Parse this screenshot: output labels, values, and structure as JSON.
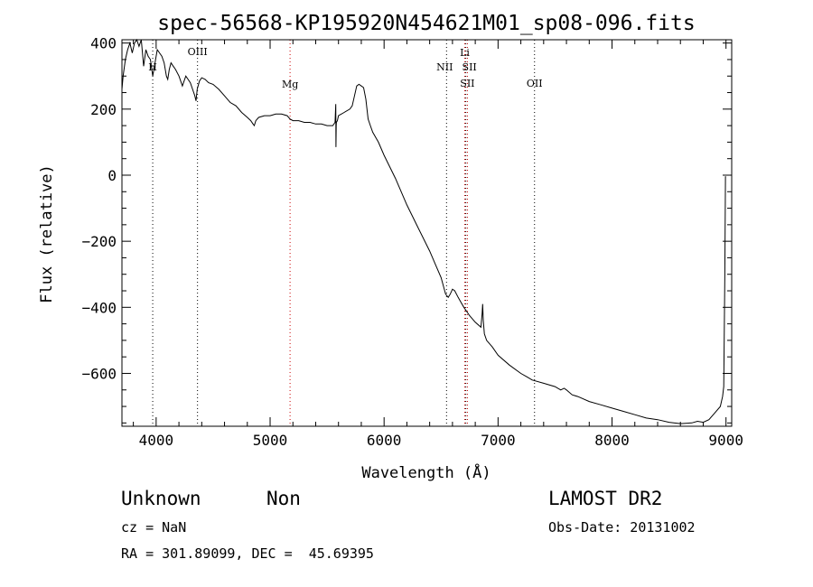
{
  "chart_data": {
    "type": "line",
    "title": "spec-56568-KP195920N454621M01_sp08-096.fits",
    "xlabel": "Wavelength (Å)",
    "ylabel": "Flux (relative)",
    "xlim": [
      3700,
      9050
    ],
    "ylim": [
      -760,
      410
    ],
    "xticks": [
      4000,
      5000,
      6000,
      7000,
      8000,
      9000
    ],
    "yticks": [
      400,
      200,
      0,
      -200,
      -400,
      -600
    ],
    "series": [
      {
        "x": [
          3700,
          3710,
          3730,
          3750,
          3770,
          3790,
          3810,
          3830,
          3850,
          3870,
          3890,
          3910,
          3930,
          3950,
          3970,
          3990,
          4010,
          4030,
          4050,
          4070,
          4090,
          4102,
          4115,
          4130,
          4150,
          4170,
          4200,
          4230,
          4260,
          4280,
          4300,
          4320,
          4340,
          4350,
          4360,
          4380,
          4400,
          4430,
          4460,
          4500,
          4550,
          4600,
          4650,
          4700,
          4750,
          4800,
          4830,
          4850,
          4861,
          4875,
          4900,
          4950,
          5000,
          5050,
          5100,
          5150,
          5175,
          5200,
          5250,
          5300,
          5350,
          5400,
          5450,
          5500,
          5550,
          5570,
          5576,
          5577,
          5578,
          5580,
          5582,
          5590,
          5600,
          5650,
          5700,
          5720,
          5740,
          5760,
          5780,
          5800,
          5820,
          5840,
          5860,
          5880,
          5900,
          5950,
          6000,
          6100,
          6200,
          6300,
          6400,
          6450,
          6500,
          6540,
          6563,
          6580,
          6600,
          6620,
          6650,
          6700,
          6750,
          6800,
          6850,
          6860,
          6865,
          6870,
          6880,
          6900,
          6950,
          7000,
          7100,
          7200,
          7250,
          7300,
          7400,
          7500,
          7550,
          7580,
          7600,
          7650,
          7700,
          7800,
          7900,
          8000,
          8100,
          8200,
          8300,
          8400,
          8500,
          8600,
          8700,
          8750,
          8800,
          8850,
          8900,
          8950,
          8970,
          8980,
          8990,
          8995,
          9000
        ],
        "y": [
          260,
          300,
          350,
          380,
          400,
          370,
          400,
          420,
          390,
          410,
          330,
          380,
          360,
          350,
          300,
          340,
          380,
          370,
          360,
          340,
          300,
          290,
          320,
          340,
          330,
          320,
          300,
          270,
          300,
          290,
          280,
          260,
          240,
          225,
          260,
          285,
          295,
          290,
          280,
          275,
          260,
          240,
          220,
          210,
          190,
          175,
          165,
          155,
          150,
          165,
          175,
          180,
          180,
          185,
          185,
          180,
          170,
          165,
          165,
          160,
          160,
          155,
          155,
          150,
          150,
          160,
          215,
          160,
          85,
          150,
          160,
          165,
          180,
          190,
          200,
          210,
          240,
          270,
          275,
          270,
          265,
          230,
          170,
          150,
          130,
          100,
          60,
          -10,
          -90,
          -160,
          -230,
          -270,
          -310,
          -360,
          -370,
          -360,
          -345,
          -350,
          -370,
          -400,
          -425,
          -445,
          -460,
          -420,
          -390,
          -440,
          -480,
          -500,
          -520,
          -545,
          -575,
          -600,
          -610,
          -620,
          -630,
          -640,
          -650,
          -645,
          -650,
          -665,
          -670,
          -685,
          -695,
          -705,
          -715,
          -725,
          -735,
          -740,
          -748,
          -752,
          -750,
          -745,
          -748,
          -740,
          -720,
          -700,
          -670,
          -640,
          -300,
          -5,
          -5
        ]
      }
    ],
    "lines": [
      {
        "label": "H",
        "x": 3970,
        "color": "#000000"
      },
      {
        "label": "OIII",
        "x": 4363,
        "color": "#000000"
      },
      {
        "label": "Mg",
        "x": 5175,
        "color": "#cc0000"
      },
      {
        "label": "NII",
        "x": 6548,
        "color": "#000000"
      },
      {
        "label": "Li",
        "x": 6708,
        "color": "#cc0000"
      },
      {
        "label": "SII",
        "x": 6717,
        "color": "#000000"
      },
      {
        "label": "SII",
        "x": 6731,
        "color": "#cc0000"
      },
      {
        "label": "OII",
        "x": 7320,
        "color": "#000000"
      }
    ]
  },
  "info": {
    "class": "Unknown",
    "subclass": "Non",
    "survey": "LAMOST DR2",
    "cz": "cz = NaN",
    "obsdate": "Obs-Date: 20131002",
    "radec": "RA = 301.89099, DEC =  45.69395"
  }
}
